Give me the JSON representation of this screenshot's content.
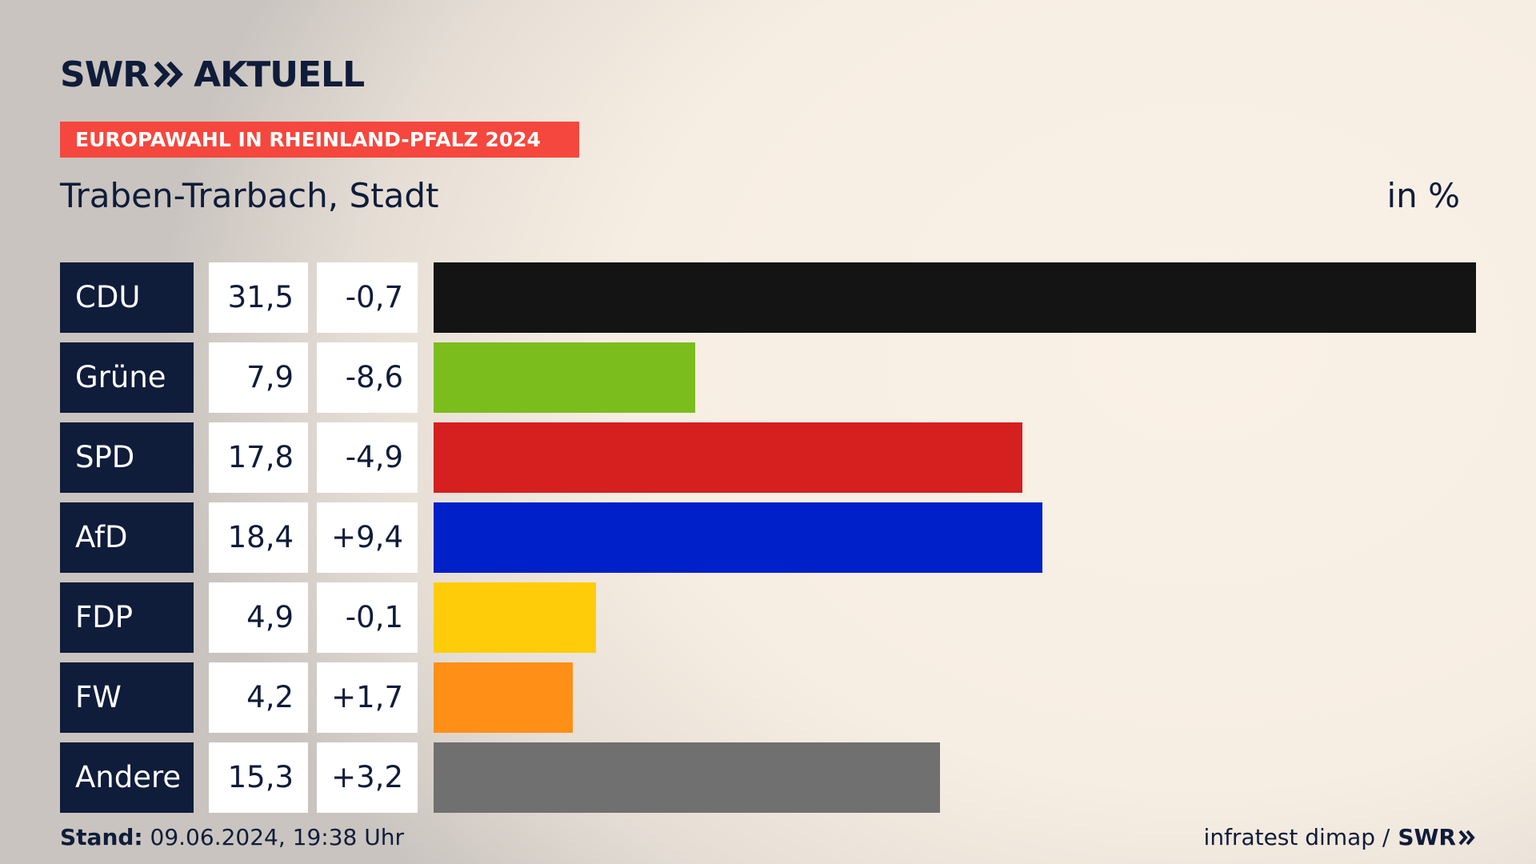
{
  "header": {
    "logo_text_left": "SWR",
    "logo_text_right": "AKTUELL",
    "banner": "EUROPAWAHL IN RHEINLAND-PFALZ 2024",
    "subtitle": "Traben-Trarbach, Stadt",
    "unit": "in %"
  },
  "colors": {
    "navy": "#0f1c3a",
    "banner_red": "#f5473d"
  },
  "chart_data": {
    "type": "bar",
    "orientation": "horizontal",
    "xlim": [
      0,
      31.5
    ],
    "rows": [
      {
        "party": "CDU",
        "value": 31.5,
        "value_label": "31,5",
        "diff_label": "-0,7",
        "color": "#141414"
      },
      {
        "party": "Grüne",
        "value": 7.9,
        "value_label": "7,9",
        "diff_label": "-8,6",
        "color": "#7bbd1d"
      },
      {
        "party": "SPD",
        "value": 17.8,
        "value_label": "17,8",
        "diff_label": "-4,9",
        "color": "#d61f1f"
      },
      {
        "party": "AfD",
        "value": 18.4,
        "value_label": "18,4",
        "diff_label": "+9,4",
        "color": "#0020c9"
      },
      {
        "party": "FDP",
        "value": 4.9,
        "value_label": "4,9",
        "diff_label": "-0,1",
        "color": "#ffcc0a"
      },
      {
        "party": "FW",
        "value": 4.2,
        "value_label": "4,2",
        "diff_label": "+1,7",
        "color": "#ff8f17"
      },
      {
        "party": "Andere",
        "value": 15.3,
        "value_label": "15,3",
        "diff_label": "+3,2",
        "color": "#707070"
      }
    ]
  },
  "footer": {
    "stand_label": "Stand:",
    "stand_value": "09.06.2024, 19:38 Uhr",
    "source": "infratest dimap /",
    "source_logo": "SWR"
  }
}
